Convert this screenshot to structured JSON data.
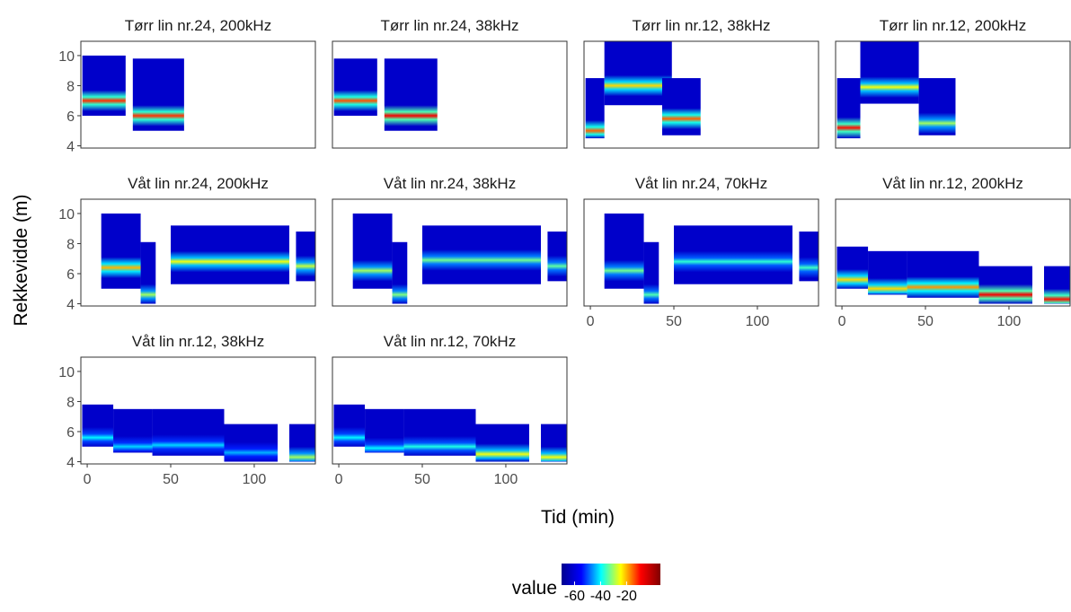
{
  "chart_data": {
    "type": "heatmap",
    "y_label": "Rekkevidde (m)",
    "x_label": "Tid (min)",
    "xlim": [
      -3.8,
      136.6
    ],
    "xticks": [
      0,
      50,
      100
    ],
    "ylim": [
      3.85,
      10.95
    ],
    "yticks": [
      4,
      6,
      8,
      10
    ],
    "background_value": -62,
    "legend": {
      "title": "value",
      "limits": [
        -70,
        6
      ],
      "ticks": [
        -60,
        -40,
        -20
      ],
      "colors": [
        "#00008f",
        "#0000ff",
        "#00ffff",
        "#ffff00",
        "#ff0000",
        "#800000"
      ]
    },
    "facets": [
      {
        "title": "Tørr lin nr.24, 200kHz",
        "blocks": [
          {
            "time": [
              -2.9,
              23
            ],
            "range": [
              6.0,
              10.0
            ],
            "peak_range": 7.0,
            "peak_value": -12
          },
          {
            "time": [
              27.3,
              58
            ],
            "range": [
              5.0,
              9.8
            ],
            "peak_range": 6.0,
            "peak_value": -12
          }
        ]
      },
      {
        "title": "Tørr lin nr.24, 38kHz",
        "blocks": [
          {
            "time": [
              -2.9,
              23
            ],
            "range": [
              6.0,
              9.8
            ],
            "peak_range": 7.0,
            "peak_value": -14
          },
          {
            "time": [
              27.3,
              59
            ],
            "range": [
              5.0,
              9.8
            ],
            "peak_range": 6.0,
            "peak_value": -8
          }
        ]
      },
      {
        "title": "Tørr lin nr.12, 38kHz",
        "blocks": [
          {
            "time": [
              -2.9,
              8.4
            ],
            "range": [
              4.5,
              8.5
            ],
            "peak_range": 5.0,
            "peak_value": -15
          },
          {
            "time": [
              8.4,
              48.8
            ],
            "range": [
              6.7,
              10.95
            ],
            "peak_range": 8.0,
            "peak_value": -22
          },
          {
            "time": [
              43,
              66
            ],
            "range": [
              4.7,
              8.5
            ],
            "peak_range": 5.8,
            "peak_value": -15
          }
        ]
      },
      {
        "title": "Tørr lin nr.12, 200kHz",
        "blocks": [
          {
            "time": [
              -2.9,
              11
            ],
            "range": [
              4.5,
              8.5
            ],
            "peak_range": 5.2,
            "peak_value": -10
          },
          {
            "time": [
              11,
              46
            ],
            "range": [
              6.8,
              10.95
            ],
            "peak_range": 7.9,
            "peak_value": -25
          },
          {
            "time": [
              46,
              68
            ],
            "range": [
              4.7,
              8.5
            ],
            "peak_range": 5.5,
            "peak_value": -30
          }
        ]
      },
      {
        "title": "Våt lin nr.24, 200kHz",
        "blocks": [
          {
            "time": [
              8.4,
              32
            ],
            "range": [
              5.0,
              10.0
            ],
            "peak_range": 6.4,
            "peak_value": -20
          },
          {
            "time": [
              32,
              41
            ],
            "range": [
              4.0,
              8.1
            ],
            "peak_range": 4.6,
            "peak_value": -30
          },
          {
            "time": [
              50,
              121
            ],
            "range": [
              5.3,
              9.2
            ],
            "peak_range": 6.8,
            "peak_value": -25
          },
          {
            "time": [
              125,
              137
            ],
            "range": [
              5.5,
              8.8
            ],
            "peak_range": 6.5,
            "peak_value": -28
          }
        ]
      },
      {
        "title": "Våt lin nr.24, 38kHz",
        "blocks": [
          {
            "time": [
              8.4,
              32
            ],
            "range": [
              5.0,
              10.0
            ],
            "peak_range": 6.2,
            "peak_value": -30
          },
          {
            "time": [
              32,
              41
            ],
            "range": [
              4.0,
              8.1
            ],
            "peak_range": 4.6,
            "peak_value": -32
          },
          {
            "time": [
              50,
              121
            ],
            "range": [
              5.3,
              9.2
            ],
            "peak_range": 6.9,
            "peak_value": -33
          },
          {
            "time": [
              125,
              137
            ],
            "range": [
              5.5,
              8.8
            ],
            "peak_range": 6.5,
            "peak_value": -34
          }
        ]
      },
      {
        "title": "Våt lin nr.24, 70kHz",
        "blocks": [
          {
            "time": [
              8.4,
              32
            ],
            "range": [
              5.0,
              10.0
            ],
            "peak_range": 6.2,
            "peak_value": -33
          },
          {
            "time": [
              32,
              41
            ],
            "range": [
              4.0,
              8.1
            ],
            "peak_range": 4.6,
            "peak_value": -35
          },
          {
            "time": [
              50,
              121
            ],
            "range": [
              5.3,
              9.2
            ],
            "peak_range": 6.8,
            "peak_value": -37
          },
          {
            "time": [
              125,
              137
            ],
            "range": [
              5.5,
              8.8
            ],
            "peak_range": 6.4,
            "peak_value": -36
          }
        ]
      },
      {
        "title": "Våt lin nr.12, 200kHz",
        "blocks": [
          {
            "time": [
              -3,
              15.6
            ],
            "range": [
              5.0,
              7.8
            ],
            "peak_range": 5.6,
            "peak_value": -22
          },
          {
            "time": [
              15.6,
              39
            ],
            "range": [
              4.6,
              7.5
            ],
            "peak_range": 5.0,
            "peak_value": -22
          },
          {
            "time": [
              39,
              82
            ],
            "range": [
              4.4,
              7.5
            ],
            "peak_range": 5.1,
            "peak_value": -18
          },
          {
            "time": [
              82,
              114
            ],
            "range": [
              4.0,
              6.5
            ],
            "peak_range": 4.6,
            "peak_value": -8
          },
          {
            "time": [
              121,
              137
            ],
            "range": [
              4.0,
              6.5
            ],
            "peak_range": 4.3,
            "peak_value": -10
          }
        ]
      },
      {
        "title": "Våt lin nr.12, 38kHz",
        "blocks": [
          {
            "time": [
              -3,
              15.6
            ],
            "range": [
              5.0,
              7.8
            ],
            "peak_range": 5.6,
            "peak_value": -40
          },
          {
            "time": [
              15.6,
              39
            ],
            "range": [
              4.6,
              7.5
            ],
            "peak_range": 5.0,
            "peak_value": -42
          },
          {
            "time": [
              39,
              82
            ],
            "range": [
              4.4,
              7.5
            ],
            "peak_range": 5.1,
            "peak_value": -42
          },
          {
            "time": [
              82,
              114
            ],
            "range": [
              4.0,
              6.5
            ],
            "peak_range": 4.6,
            "peak_value": -44
          },
          {
            "time": [
              121,
              137
            ],
            "range": [
              4.0,
              6.5
            ],
            "peak_range": 4.3,
            "peak_value": -30
          }
        ]
      },
      {
        "title": "Våt lin nr.12, 70kHz",
        "blocks": [
          {
            "time": [
              -3,
              15.6
            ],
            "range": [
              5.0,
              7.8
            ],
            "peak_range": 5.6,
            "peak_value": -40
          },
          {
            "time": [
              15.6,
              39
            ],
            "range": [
              4.6,
              7.5
            ],
            "peak_range": 4.9,
            "peak_value": -40
          },
          {
            "time": [
              39,
              82
            ],
            "range": [
              4.4,
              7.5
            ],
            "peak_range": 5.0,
            "peak_value": -38
          },
          {
            "time": [
              82,
              114
            ],
            "range": [
              4.0,
              6.5
            ],
            "peak_range": 4.5,
            "peak_value": -25
          },
          {
            "time": [
              121,
              137
            ],
            "range": [
              4.0,
              6.5
            ],
            "peak_range": 4.3,
            "peak_value": -25
          }
        ]
      }
    ]
  }
}
